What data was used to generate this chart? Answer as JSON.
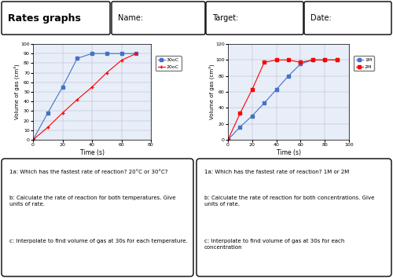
{
  "title": "Rates graphs",
  "header_labels": [
    "Name:",
    "Target:",
    "Date:"
  ],
  "graph1": {
    "xlabel": "Time (s)",
    "ylabel": "Volume of gas (cm³)",
    "xlim": [
      0,
      80
    ],
    "ylim": [
      0,
      100
    ],
    "xticks": [
      0,
      20,
      40,
      60,
      80
    ],
    "yticks": [
      0,
      10,
      20,
      30,
      40,
      50,
      60,
      70,
      80,
      90,
      100
    ],
    "series": [
      {
        "label": "30oC",
        "color": "#4472C4",
        "marker": "s",
        "x": [
          0,
          10,
          20,
          30,
          40,
          50,
          60,
          70
        ],
        "y": [
          0,
          28,
          55,
          85,
          90,
          90,
          90,
          90
        ]
      },
      {
        "label": "20oC",
        "color": "#FF0000",
        "marker": "+",
        "x": [
          0,
          10,
          20,
          30,
          40,
          50,
          60,
          70
        ],
        "y": [
          0,
          13,
          28,
          42,
          55,
          70,
          83,
          90
        ]
      }
    ]
  },
  "graph2": {
    "xlabel": "Time (s)",
    "ylabel": "Volume of gas (cm³)",
    "xlim": [
      0,
      100
    ],
    "ylim": [
      0,
      120
    ],
    "xticks": [
      0,
      20,
      40,
      60,
      80,
      100
    ],
    "yticks": [
      0,
      20,
      40,
      60,
      80,
      100,
      120
    ],
    "series": [
      {
        "label": "1M",
        "color": "#4472C4",
        "marker": "s",
        "x": [
          0,
          10,
          20,
          30,
          40,
          50,
          60,
          70,
          80,
          90
        ],
        "y": [
          0,
          16,
          30,
          46,
          63,
          80,
          95,
          100,
          100,
          100
        ]
      },
      {
        "label": "2M",
        "color": "#FF0000",
        "marker": "s",
        "x": [
          0,
          10,
          20,
          30,
          40,
          50,
          60,
          70,
          80,
          90
        ],
        "y": [
          0,
          33,
          63,
          97,
          100,
          100,
          97,
          100,
          100,
          100
        ]
      }
    ]
  },
  "questions_left": [
    "1a: Which has the fastest rate of reaction? 20°C or 30°C?",
    "b: Calculate the rate of reaction for both temperatures. Give\nunits of rate.",
    "c: Interpolate to find volume of gas at 30s for each temperature."
  ],
  "questions_right": [
    "1a: Which has the fastest rate of reaction? 1M or 2M",
    "b: Calculate the rate of reaction for both concentrations. Give\nunits of rate.",
    "c: Interpolate to find volume of gas at 30s for each\nconcentration"
  ],
  "bg_color": "#FFFFFF",
  "plot_bg_color": "#E8EEF8",
  "grid_color": "#AAAACC"
}
